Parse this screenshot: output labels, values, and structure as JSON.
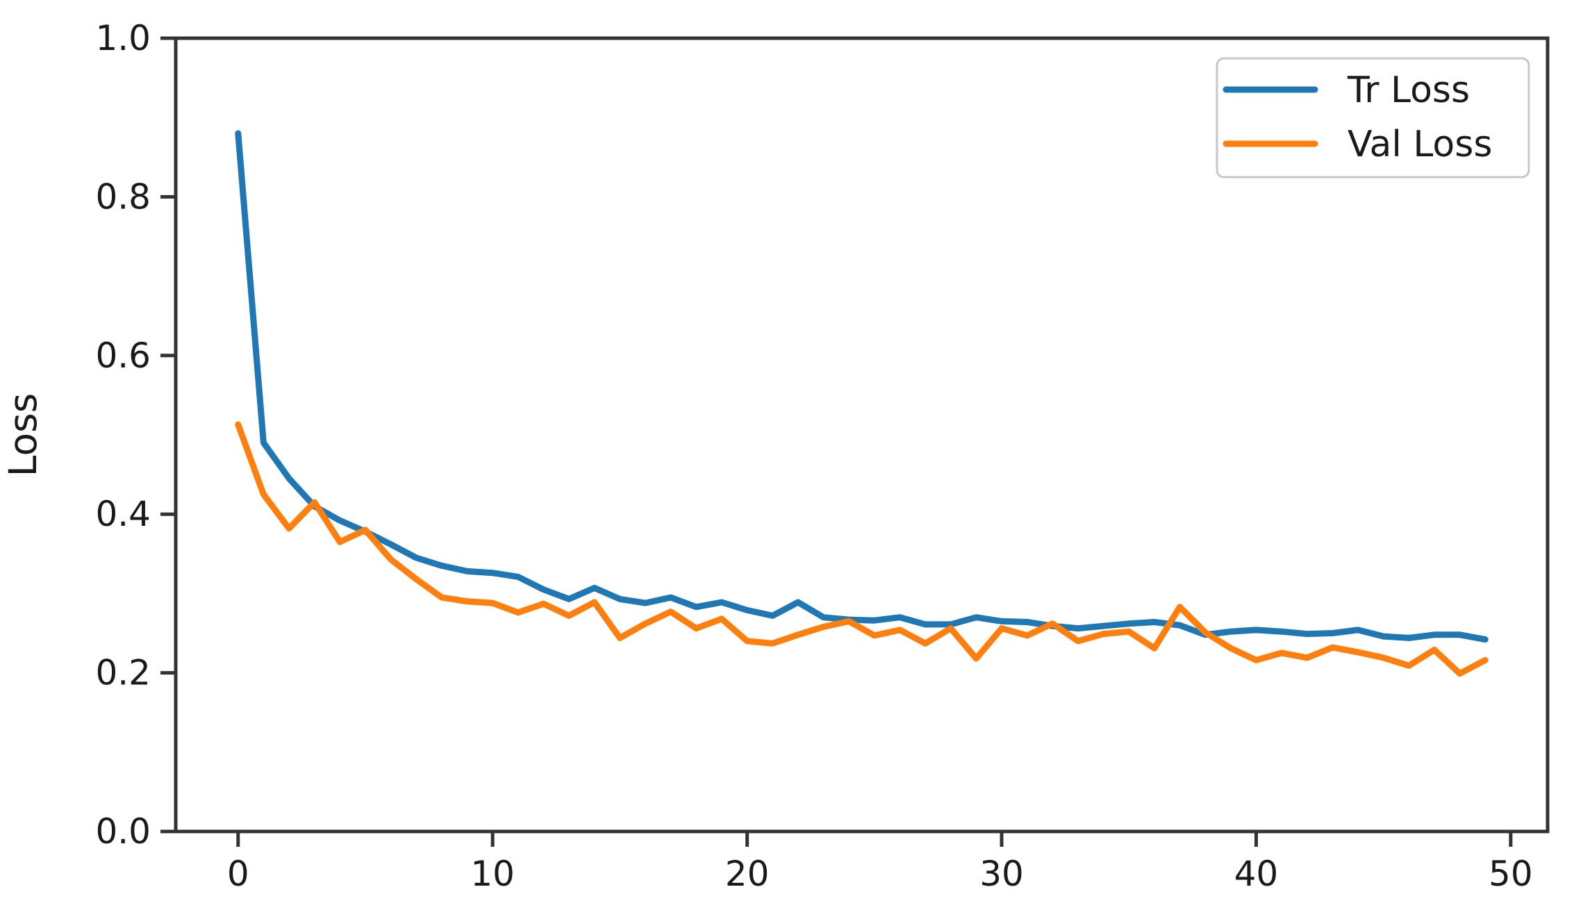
{
  "figure": {
    "background": "#ffffff",
    "spine_color": "#333333",
    "text_color": "#1a1a1a",
    "legend": {
      "position": "upper right",
      "border_color": "#c8c8c8",
      "entries": [
        {
          "label": "Tr Loss",
          "color": "#1f77b4"
        },
        {
          "label": "Val Loss",
          "color": "#ff7f0e"
        }
      ]
    }
  },
  "chart_data": {
    "type": "line",
    "title": "",
    "xlabel": "",
    "ylabel": "Loss",
    "grid": false,
    "legend_position": "upper right",
    "xlim": [
      -2.45,
      51.45
    ],
    "ylim": [
      0.0,
      1.0
    ],
    "xticks": [
      0,
      10,
      20,
      30,
      40,
      50
    ],
    "xtick_labels": [
      "0",
      "10",
      "20",
      "30",
      "40",
      "50"
    ],
    "yticks": [
      0.0,
      0.2,
      0.4,
      0.6,
      0.8,
      1.0
    ],
    "ytick_labels": [
      "0.0",
      "0.2",
      "0.4",
      "0.6",
      "0.8",
      "1.0"
    ],
    "x": [
      0,
      1,
      2,
      3,
      4,
      5,
      6,
      7,
      8,
      9,
      10,
      11,
      12,
      13,
      14,
      15,
      16,
      17,
      18,
      19,
      20,
      21,
      22,
      23,
      24,
      25,
      26,
      27,
      28,
      29,
      30,
      31,
      32,
      33,
      34,
      35,
      36,
      37,
      38,
      39,
      40,
      41,
      42,
      43,
      44,
      45,
      46,
      47,
      48,
      49
    ],
    "series": [
      {
        "name": "Tr Loss",
        "color": "#1f77b4",
        "values": [
          0.88,
          0.49,
          0.445,
          0.41,
          0.392,
          0.378,
          0.362,
          0.345,
          0.335,
          0.328,
          0.326,
          0.321,
          0.305,
          0.293,
          0.307,
          0.293,
          0.288,
          0.295,
          0.283,
          0.289,
          0.279,
          0.272,
          0.289,
          0.27,
          0.267,
          0.266,
          0.27,
          0.261,
          0.261,
          0.27,
          0.265,
          0.264,
          0.259,
          0.256,
          0.259,
          0.262,
          0.264,
          0.26,
          0.248,
          0.252,
          0.254,
          0.252,
          0.249,
          0.25,
          0.254,
          0.246,
          0.244,
          0.248,
          0.248,
          0.242
        ]
      },
      {
        "name": "Val Loss",
        "color": "#ff7f0e",
        "values": [
          0.513,
          0.425,
          0.382,
          0.415,
          0.365,
          0.38,
          0.343,
          0.318,
          0.295,
          0.29,
          0.288,
          0.276,
          0.287,
          0.272,
          0.289,
          0.244,
          0.262,
          0.277,
          0.256,
          0.268,
          0.24,
          0.237,
          0.248,
          0.258,
          0.265,
          0.247,
          0.254,
          0.237,
          0.256,
          0.218,
          0.256,
          0.247,
          0.262,
          0.24,
          0.249,
          0.252,
          0.231,
          0.283,
          0.251,
          0.231,
          0.216,
          0.225,
          0.219,
          0.232,
          0.226,
          0.219,
          0.209,
          0.229,
          0.199,
          0.216
        ]
      }
    ]
  }
}
